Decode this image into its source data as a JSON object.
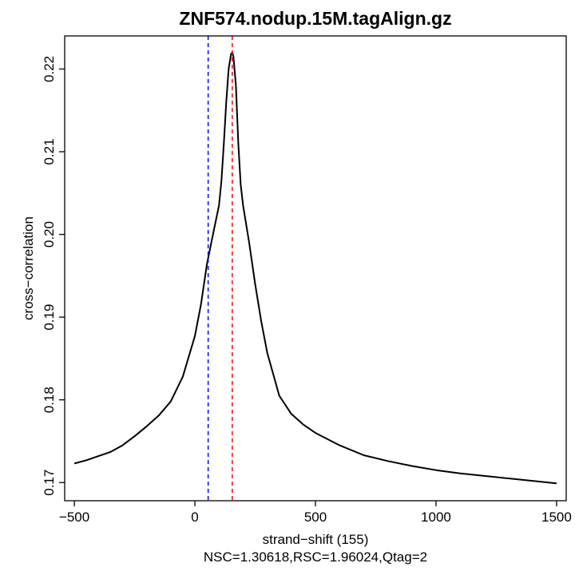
{
  "chart_data": {
    "type": "line",
    "title": "ZNF574.nodup.15M.tagAlign.gz",
    "xlabel": "strand−shift (155)",
    "subtitle": "NSC=1.30618,RSC=1.96024,Qtag=2",
    "ylabel": "cross−correlation",
    "xlim": [
      -540,
      1540
    ],
    "ylim": [
      0.1678,
      0.224
    ],
    "xticks": [
      -500,
      0,
      500,
      1000,
      1500
    ],
    "xtick_labels": [
      "−500",
      "0",
      "500",
      "1000",
      "1500"
    ],
    "yticks": [
      0.17,
      0.18,
      0.19,
      0.2,
      0.21,
      0.22
    ],
    "ytick_labels": [
      "0.17",
      "0.18",
      "0.19",
      "0.20",
      "0.21",
      "0.22"
    ],
    "grid": false,
    "legend": "none",
    "vlines": [
      {
        "x": 55,
        "color": "#0000ff",
        "style": "dashed"
      },
      {
        "x": 155,
        "color": "#ff0000",
        "style": "dashed"
      }
    ],
    "series": [
      {
        "color": "#000000",
        "x": [
          -500,
          -450,
          -400,
          -350,
          -300,
          -250,
          -200,
          -150,
          -100,
          -50,
          0,
          25,
          50,
          75,
          100,
          110,
          120,
          130,
          140,
          150,
          155,
          160,
          170,
          180,
          190,
          200,
          225,
          250,
          275,
          300,
          350,
          400,
          450,
          500,
          600,
          700,
          800,
          900,
          1000,
          1100,
          1200,
          1300,
          1400,
          1500
        ],
        "y": [
          0.1723,
          0.1727,
          0.1732,
          0.1737,
          0.1745,
          0.1756,
          0.1768,
          0.1781,
          0.1798,
          0.1828,
          0.1877,
          0.1915,
          0.1964,
          0.2,
          0.2035,
          0.2065,
          0.211,
          0.216,
          0.22,
          0.2218,
          0.222,
          0.2215,
          0.218,
          0.211,
          0.206,
          0.2035,
          0.199,
          0.194,
          0.1895,
          0.1857,
          0.1805,
          0.1783,
          0.177,
          0.176,
          0.1745,
          0.1733,
          0.1726,
          0.172,
          0.1715,
          0.1711,
          0.1708,
          0.1705,
          0.1702,
          0.1699
        ]
      }
    ]
  }
}
